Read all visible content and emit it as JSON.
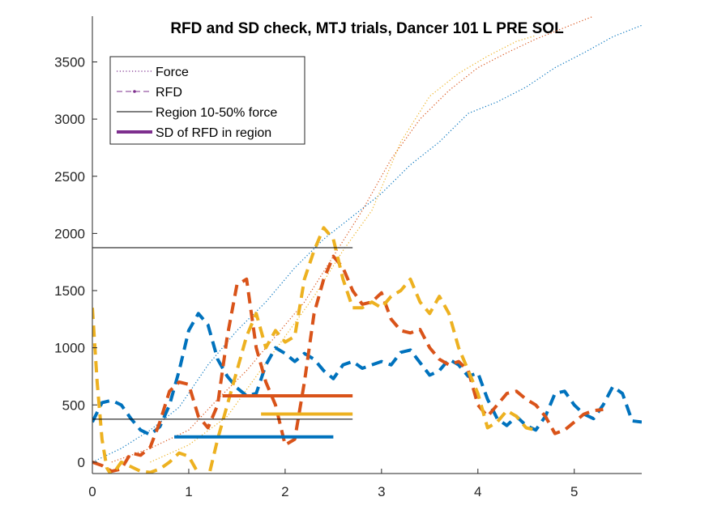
{
  "chart_data": {
    "type": "line",
    "title": "RFD and SD check, MTJ trials, Dancer 101 L PRE SOL",
    "xlabel": "",
    "ylabel": "",
    "xlim": [
      0,
      5.7
    ],
    "ylim": [
      -100,
      3900
    ],
    "xticks": [
      0,
      1,
      2,
      3,
      4,
      5
    ],
    "yticks": [
      0,
      500,
      1000,
      1500,
      2000,
      2500,
      3000,
      3500
    ],
    "grid": false,
    "legend_location": "top-left",
    "legend": [
      {
        "label": "Force",
        "style": "dotted"
      },
      {
        "label": "RFD",
        "style": "dashed"
      },
      {
        "label": "Region 10-50% force",
        "style": "solid"
      },
      {
        "label": "SD of RFD in region",
        "style": "thick"
      }
    ],
    "colors": {
      "blue": "#0072BD",
      "orange": "#D95319",
      "yellow": "#EDB120",
      "legend_purple": "#7E2F8E",
      "region": "#000000"
    },
    "force_series": [
      {
        "color": "#0072BD",
        "x": [
          0,
          0.3,
          0.6,
          0.9,
          1.2,
          1.5,
          1.8,
          2.1,
          2.4,
          2.7,
          3.0,
          3.3,
          3.6,
          3.9,
          4.2,
          4.5,
          4.8,
          5.1,
          5.4,
          5.7
        ],
        "y": [
          0,
          120,
          280,
          480,
          850,
          1150,
          1400,
          1700,
          1950,
          2150,
          2350,
          2600,
          2800,
          3050,
          3150,
          3280,
          3450,
          3580,
          3720,
          3820
        ]
      },
      {
        "color": "#D95319",
        "x": [
          0.2,
          0.6,
          1.0,
          1.3,
          1.6,
          1.9,
          2.2,
          2.5,
          2.8,
          3.1,
          3.4,
          3.7,
          4.0,
          4.3,
          4.6,
          4.9,
          5.2
        ],
        "y": [
          0,
          120,
          280,
          550,
          800,
          1100,
          1400,
          1800,
          2200,
          2650,
          3000,
          3250,
          3450,
          3580,
          3700,
          3800,
          3900
        ]
      },
      {
        "color": "#EDB120",
        "x": [
          0.6,
          1.0,
          1.4,
          1.7,
          2.0,
          2.3,
          2.6,
          2.9,
          3.2,
          3.5,
          3.8,
          4.1,
          4.4,
          4.6
        ],
        "y": [
          0,
          150,
          400,
          750,
          1100,
          1450,
          1850,
          2200,
          2800,
          3200,
          3400,
          3550,
          3680,
          3730
        ]
      }
    ],
    "rfd_series": [
      {
        "color": "#0072BD",
        "x": [
          0,
          0.1,
          0.2,
          0.3,
          0.4,
          0.5,
          0.6,
          0.7,
          0.8,
          0.9,
          1.0,
          1.1,
          1.2,
          1.3,
          1.4,
          1.5,
          1.6,
          1.7,
          1.8,
          1.9,
          2.0,
          2.1,
          2.2,
          2.3,
          2.4,
          2.5,
          2.6,
          2.7,
          2.8,
          2.9,
          3.0,
          3.1,
          3.2,
          3.3,
          3.4,
          3.5,
          3.6,
          3.7,
          3.8,
          3.9,
          4.0,
          4.1,
          4.2,
          4.3,
          4.4,
          4.5,
          4.6,
          4.7,
          4.8,
          4.9,
          5.0,
          5.1,
          5.2,
          5.3,
          5.4,
          5.5,
          5.6,
          5.7
        ],
        "y": [
          350,
          520,
          540,
          500,
          380,
          280,
          240,
          310,
          500,
          800,
          1150,
          1300,
          1200,
          900,
          750,
          650,
          580,
          600,
          850,
          1000,
          950,
          880,
          950,
          900,
          800,
          730,
          850,
          880,
          820,
          850,
          880,
          850,
          960,
          980,
          870,
          760,
          800,
          900,
          850,
          750,
          780,
          550,
          380,
          320,
          400,
          320,
          280,
          400,
          600,
          620,
          500,
          420,
          380,
          500,
          660,
          600,
          360,
          350
        ]
      },
      {
        "color": "#D95319",
        "x": [
          0,
          0.1,
          0.2,
          0.3,
          0.4,
          0.5,
          0.6,
          0.7,
          0.8,
          0.9,
          1.0,
          1.1,
          1.2,
          1.3,
          1.4,
          1.5,
          1.6,
          1.7,
          1.8,
          1.9,
          2.0,
          2.1,
          2.2,
          2.3,
          2.4,
          2.5,
          2.6,
          2.7,
          2.8,
          2.9,
          3.0,
          3.1,
          3.2,
          3.3,
          3.4,
          3.5,
          3.6,
          3.7,
          3.8,
          3.9,
          4.0,
          4.1,
          4.2,
          4.3,
          4.4,
          4.5,
          4.6,
          4.7,
          4.8,
          4.9,
          5.0,
          5.1,
          5.2,
          5.3
        ],
        "y": [
          0,
          -30,
          -80,
          -60,
          80,
          60,
          130,
          350,
          620,
          700,
          680,
          400,
          300,
          500,
          1100,
          1550,
          1600,
          1000,
          700,
          500,
          150,
          200,
          700,
          1300,
          1600,
          1800,
          1700,
          1500,
          1380,
          1400,
          1480,
          1250,
          1150,
          1130,
          1160,
          1000,
          900,
          850,
          880,
          800,
          500,
          400,
          500,
          600,
          620,
          550,
          500,
          400,
          250,
          280,
          350,
          420,
          450,
          460
        ]
      },
      {
        "color": "#EDB120",
        "x": [
          0,
          0.05,
          0.1,
          0.15,
          0.2,
          0.3,
          0.4,
          0.5,
          0.6,
          0.7,
          0.8,
          0.9,
          1.0,
          1.1,
          1.2,
          1.3,
          1.4,
          1.5,
          1.6,
          1.7,
          1.8,
          1.9,
          2.0,
          2.1,
          2.2,
          2.3,
          2.4,
          2.5,
          2.6,
          2.7,
          2.8,
          2.9,
          3.0,
          3.1,
          3.2,
          3.3,
          3.4,
          3.5,
          3.6,
          3.7,
          3.8,
          3.9,
          4.0,
          4.1,
          4.2,
          4.3,
          4.4,
          4.5,
          4.6
        ],
        "y": [
          1350,
          700,
          200,
          -50,
          -120,
          0,
          -40,
          -80,
          -90,
          -60,
          0,
          80,
          50,
          -100,
          -150,
          200,
          500,
          800,
          1100,
          1300,
          1000,
          1150,
          1050,
          1100,
          1600,
          1850,
          2050,
          1950,
          1600,
          1350,
          1350,
          1400,
          1350,
          1450,
          1500,
          1600,
          1400,
          1300,
          1450,
          1300,
          1000,
          800,
          600,
          300,
          350,
          450,
          400,
          300,
          280
        ]
      }
    ],
    "region_lines": [
      {
        "label": "Region 10-50% force",
        "y": 1875,
        "x": [
          0,
          2.7
        ]
      },
      {
        "label": "Region 10-50% force",
        "y": 375,
        "x": [
          0,
          2.7
        ]
      }
    ],
    "sd_segments": [
      {
        "color": "#D95319",
        "y": 580,
        "x": [
          1.35,
          2.7
        ]
      },
      {
        "color": "#EDB120",
        "y": 420,
        "x": [
          1.75,
          2.7
        ]
      },
      {
        "color": "#0072BD",
        "y": 220,
        "x": [
          0.85,
          2.5
        ]
      }
    ]
  }
}
